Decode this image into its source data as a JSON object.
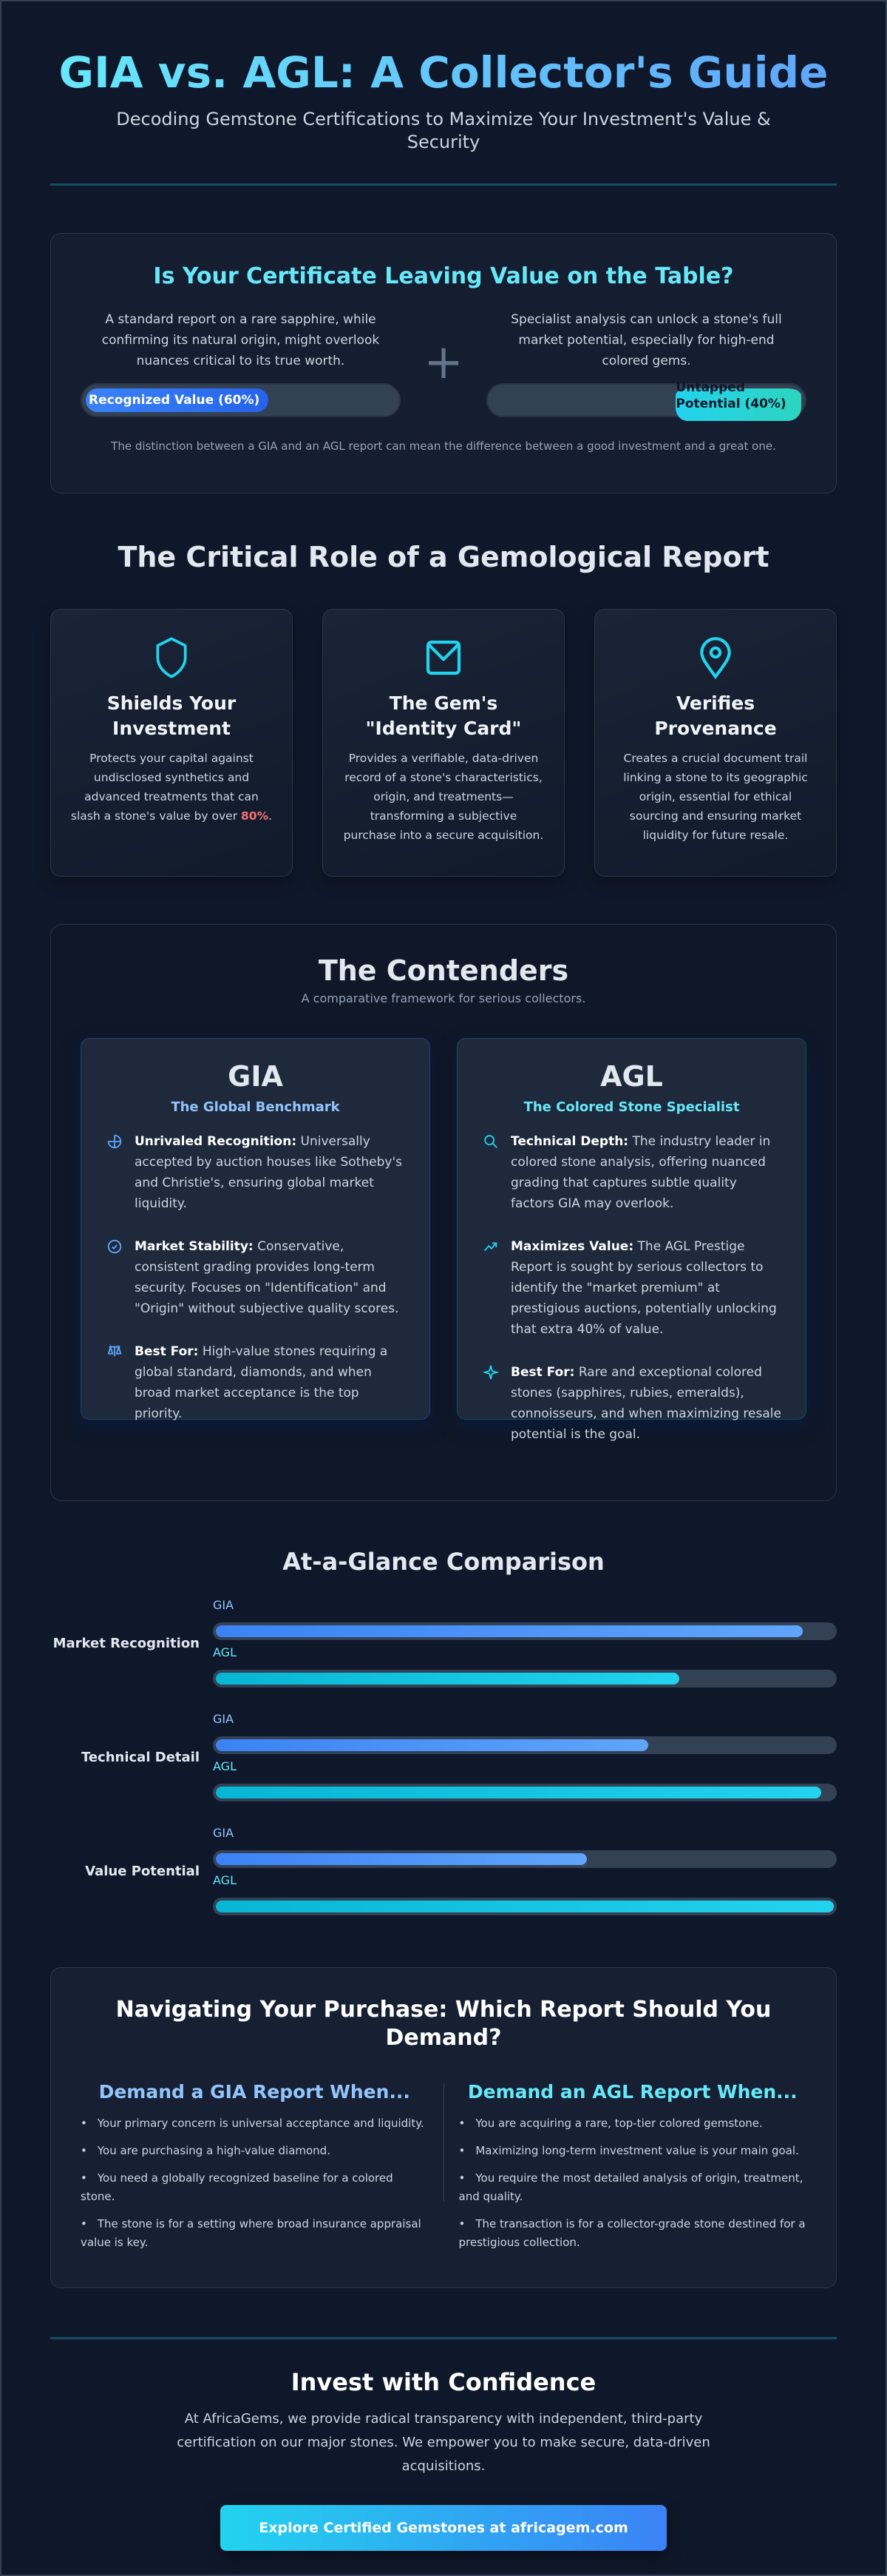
{
  "header": {
    "title": "GIA vs. AGL: A Collector's Guide",
    "subtitle": "Decoding Gemstone Certifications to Maximize Your Investment's Value & Security"
  },
  "value_card": {
    "heading": "Is Your Certificate Leaving Value on the Table?",
    "left_text": "A standard report on a rare sapphire, while confirming its natural origin, might overlook nuances critical to its true worth.",
    "right_text": "Specialist analysis can unlock a stone's full market potential, especially for high-end colored gems.",
    "plus_symbol": "+",
    "recognized_label": "Recognized Value (60%)",
    "recognized_percent": 60,
    "untapped_label": "Untapped Potential (40%)",
    "untapped_percent": 40,
    "footnote": "The distinction between a GIA and an AGL report can mean the difference between a good investment and a great one."
  },
  "roles": {
    "heading": "The Critical Role of a Gemological Report",
    "cards": [
      {
        "icon": "shield-icon",
        "title": "Shields Your Investment",
        "text": "Protects your capital against undisclosed synthetics and advanced treatments that can slash a stone's value by over ",
        "highlight": "80%",
        "suffix": "."
      },
      {
        "icon": "envelope-icon",
        "title": "The Gem's \"Identity Card\"",
        "text": "Provides a verifiable, data-driven record of a stone's characteristics, origin, and treatments—transforming a subjective purchase into a secure acquisition."
      },
      {
        "icon": "map-pin-icon",
        "title": "Verifies Provenance",
        "text": "Creates a crucial document trail linking a stone to its geographic origin, essential for ethical sourcing and ensuring market liquidity for future resale."
      }
    ]
  },
  "contenders": {
    "heading": "The Contenders",
    "subtitle": "A comparative framework for serious collectors.",
    "gia": {
      "name": "GIA",
      "tagline": "The Global Benchmark",
      "color": "#60a5fa",
      "items": [
        {
          "icon": "globe-icon",
          "label": "Unrivaled Recognition:",
          "text": " Universally accepted by auction houses like Sotheby's and Christie's, ensuring global market liquidity."
        },
        {
          "icon": "check-circle-icon",
          "label": "Market Stability:",
          "text": " Conservative, consistent grading provides long-term security. Focuses on \"Identification\" and \"Origin\" without subjective quality scores."
        },
        {
          "icon": "scales-icon",
          "label": "Best For:",
          "text": " High-value stones requiring a global standard, diamonds, and when broad market acceptance is the top priority."
        }
      ]
    },
    "agl": {
      "name": "AGL",
      "tagline": "The Colored Stone Specialist",
      "color": "#22d3ee",
      "items": [
        {
          "icon": "search-icon",
          "label": "Technical Depth:",
          "text": " The industry leader in colored stone analysis, offering nuanced grading that captures subtle quality factors GIA may overlook."
        },
        {
          "icon": "trending-up-icon",
          "label": "Maximizes Value:",
          "text": " The AGL Prestige Report is sought by serious collectors to identify the \"market premium\" at prestigious auctions, potentially unlocking that extra 40% of value."
        },
        {
          "icon": "sparkle-icon",
          "label": "Best For:",
          "text": " Rare and exceptional colored stones (sapphires, rubies, emeralds), connoisseurs, and when maximizing resale potential is the goal."
        }
      ]
    }
  },
  "glance": {
    "heading": "At-a-Glance Comparison",
    "series": [
      "GIA",
      "AGL"
    ],
    "rows": [
      {
        "label": "Market Recognition",
        "gia": 95,
        "agl": 75
      },
      {
        "label": "Technical Detail",
        "gia": 70,
        "agl": 98
      },
      {
        "label": "Value Potential",
        "gia": 60,
        "agl": 100
      }
    ]
  },
  "navigate": {
    "heading": "Navigating Your Purchase: Which Report Should You Demand?",
    "gia_heading": "Demand a GIA Report When...",
    "gia_items": [
      "Your primary concern is universal acceptance and liquidity.",
      "You are purchasing a high-value diamond.",
      "You need a globally recognized baseline for a colored stone.",
      "The stone is for a setting where broad insurance appraisal value is key."
    ],
    "agl_heading": "Demand an AGL Report When...",
    "agl_items": [
      "You are acquiring a rare, top-tier colored gemstone.",
      "Maximizing long-term investment value is your main goal.",
      "You require the most detailed analysis of origin, treatment, and quality.",
      "The transaction is for a collector-grade stone destined for a prestigious collection."
    ]
  },
  "cta": {
    "heading": "Invest with Confidence",
    "text": "At AfricaGems, we provide radical transparency with independent, third-party certification on our major stones. We empower you to make secure, data-driven acquisitions.",
    "button": "Explore Certified Gemstones at africagem.com"
  },
  "colors": {
    "background": "#0f172a",
    "gia": "#60a5fa",
    "agl": "#22d3ee",
    "highlight": "#f87171"
  }
}
